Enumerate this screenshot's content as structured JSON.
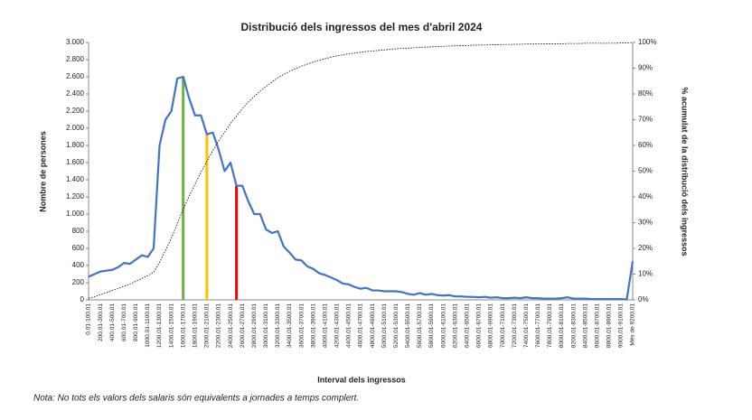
{
  "chart_data": {
    "type": "line",
    "title": "Distribució dels ingressos del mes d'abril 2024",
    "xlabel": "Interval dels ingressos",
    "ylabel": "Nombre de persones",
    "y2label": "% acumulat de la distribució dels ingressos",
    "note": "Nota: No tots els valors dels salaris són equivalents a jornades a temps complert.",
    "categories": [
      "0,01-100,01",
      null,
      "200,01-300,01",
      null,
      "400,01-500,01",
      null,
      "600,01-700,01",
      null,
      "800,01-900,01",
      null,
      "1000,01-1100,01",
      null,
      "1200,01-1300,01",
      null,
      "1400,01-1500,01",
      null,
      "1600,01-1700,01",
      null,
      "1800,01-1900,01",
      null,
      "2000,01-2100,01",
      null,
      "2200,01-2300,01",
      null,
      "2400,01-2500,01",
      null,
      "2600,01-2700,01",
      null,
      "2800,01-2900,01",
      null,
      "3000,01-3100,01",
      null,
      "3200,01-3300,01",
      null,
      "3400,01-3500,01",
      null,
      "3600,01-3700,01",
      null,
      "3800,01-3900,01",
      null,
      "4000,01-4100,01",
      null,
      "4200,01-4300,01",
      null,
      "4400,01-4500,01",
      null,
      "4600,01-4700,01",
      null,
      "4800,01-4900,01",
      null,
      "5000,01-5100,01",
      null,
      "5200,01-5300,01",
      null,
      "5400,01-5500,01",
      null,
      "5600,01-5700,01",
      null,
      "5800,01-5900,01",
      null,
      "6000,01-6100,01",
      null,
      "6200,01-6300,01",
      null,
      "6400,01-6500,01",
      null,
      "6600,01-6700,01",
      null,
      "6800,01-6900,01",
      null,
      "7000,01-7100,01",
      null,
      "7200,01-7300,01",
      null,
      "7400,01-7500,01",
      null,
      "7600,01-7700,01",
      null,
      "7800,01-7900,01",
      null,
      "8000,01-8100,01",
      null,
      "8200,01-8300,01",
      null,
      "8400,01-8500,01",
      null,
      "8600,01-8700,01",
      null,
      "8800,01-8900,01",
      null,
      "9000,01-9100,01",
      null,
      "Més de 9200,01"
    ],
    "series": [
      {
        "color": "#4472c4",
        "axis": "y",
        "values": [
          270,
          300,
          330,
          340,
          350,
          380,
          430,
          420,
          470,
          520,
          500,
          600,
          1800,
          2100,
          2200,
          2580,
          2600,
          2350,
          2150,
          2150,
          1930,
          1950,
          1750,
          1500,
          1600,
          1330,
          1330,
          1150,
          1000,
          1000,
          820,
          780,
          800,
          620,
          550,
          470,
          460,
          390,
          360,
          310,
          290,
          260,
          230,
          190,
          180,
          150,
          130,
          140,
          110,
          110,
          100,
          100,
          100,
          90,
          70,
          60,
          80,
          60,
          70,
          55,
          50,
          55,
          40,
          40,
          35,
          35,
          30,
          35,
          25,
          30,
          20,
          20,
          25,
          20,
          30,
          20,
          20,
          15,
          15,
          15,
          20,
          30,
          15,
          15,
          15,
          10,
          10,
          10,
          10,
          10,
          10,
          5,
          450
        ]
      },
      {
        "color": "#000000",
        "axis": "y2",
        "dash": true,
        "values": [
          0.6,
          1.2,
          2,
          2.8,
          3.6,
          4.4,
          5.3,
          6.2,
          7.2,
          8.3,
          9.4,
          10.7,
          14.6,
          19.2,
          24,
          29.6,
          35.2,
          40.3,
          45,
          49.6,
          53.8,
          58,
          61.8,
          65.1,
          68.5,
          71.4,
          74.3,
          76.8,
          79,
          81.1,
          82.9,
          84.6,
          86.3,
          87.6,
          88.8,
          89.8,
          90.8,
          91.6,
          92.4,
          93.1,
          93.7,
          94.3,
          94.8,
          95.2,
          95.6,
          95.9,
          96.2,
          96.5,
          96.7,
          96.9,
          97.1,
          97.3,
          97.5,
          97.7,
          97.8,
          97.9,
          98.1,
          98.2,
          98.3,
          98.4,
          98.5,
          98.6,
          98.7,
          98.8,
          98.8,
          98.9,
          99,
          99,
          99.1,
          99.1,
          99.2,
          99.2,
          99.3,
          99.3,
          99.4,
          99.4,
          99.4,
          99.5,
          99.5,
          99.5,
          99.5,
          99.6,
          99.6,
          99.6,
          99.7,
          99.7,
          99.7,
          99.7,
          99.7,
          99.7,
          99.8,
          99.8,
          100
        ]
      }
    ],
    "vlines": [
      {
        "x": 16,
        "color": "#70ad47"
      },
      {
        "x": 20,
        "color": "#ffc000"
      },
      {
        "x": 25,
        "color": "#ff0000"
      }
    ],
    "ylim": [
      0,
      3000
    ],
    "yticks": [
      0,
      200,
      400,
      600,
      800,
      {
        "value": 1000,
        "label": "1.000"
      },
      {
        "value": 1200,
        "label": "1.200"
      },
      {
        "value": 1400,
        "label": "1.400"
      },
      {
        "value": 1600,
        "label": "1.600"
      },
      {
        "value": 1800,
        "label": "1.800"
      },
      {
        "value": 2000,
        "label": "2.000"
      },
      {
        "value": 2200,
        "label": "2.200"
      },
      {
        "value": 2400,
        "label": "2.400"
      },
      {
        "value": 2600,
        "label": "2.600"
      },
      {
        "value": 2800,
        "label": "2.800"
      },
      {
        "value": 3000,
        "label": "3.000"
      }
    ],
    "y2lim": [
      0,
      100
    ],
    "y2ticks": [
      {
        "value": 0,
        "label": "0%"
      },
      {
        "value": 10,
        "label": "10%"
      },
      {
        "value": 20,
        "label": "20%"
      },
      {
        "value": 30,
        "label": "30%"
      },
      {
        "value": 40,
        "label": "40%"
      },
      {
        "value": 50,
        "label": "50%"
      },
      {
        "value": 60,
        "label": "60%"
      },
      {
        "value": 70,
        "label": "70%"
      },
      {
        "value": 80,
        "label": "80%"
      },
      {
        "value": 90,
        "label": "90%"
      },
      {
        "value": 100,
        "label": "100%"
      }
    ]
  }
}
